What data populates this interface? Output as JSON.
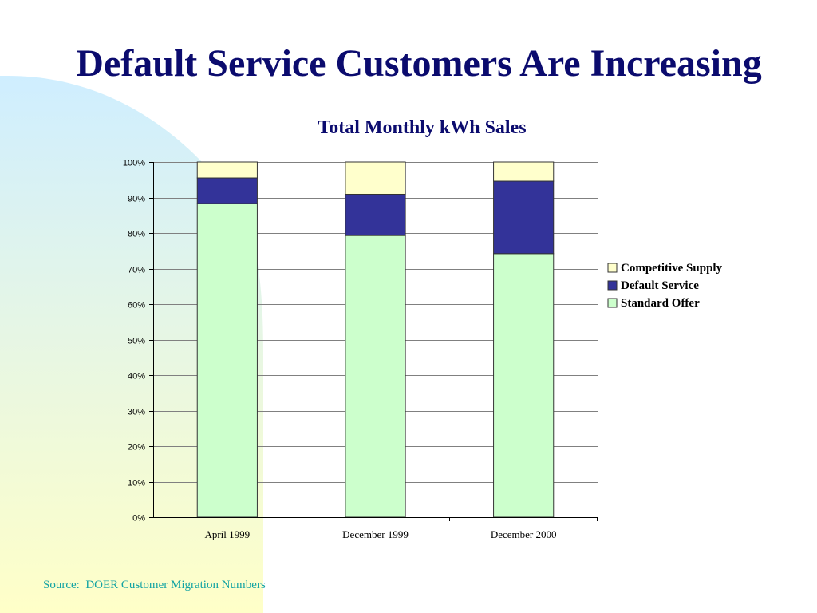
{
  "slide": {
    "title": "Default Service Customers Are Increasing",
    "source": "Source:  DOER Customer Migration Numbers"
  },
  "colors": {
    "title": "#0b0b6e",
    "source": "#12a3a3",
    "competitive_supply": "#ffffcc",
    "default_service": "#333399",
    "standard_offer": "#ccffcc",
    "gridline": "#808080",
    "bar_outline": "#333333",
    "background_gradient": [
      "#cfeeff",
      "#ffffc8"
    ]
  },
  "chart_data": {
    "type": "bar",
    "stacked": true,
    "percent_stacked": true,
    "title": "Total Monthly kWh Sales",
    "xlabel": "",
    "ylabel": "",
    "categories": [
      "April 1999",
      "December 1999",
      "December 2000"
    ],
    "series": [
      {
        "name": "Standard Offer",
        "values": [
          88.3,
          79.3,
          74.2
        ],
        "color": "#ccffcc"
      },
      {
        "name": "Default Service",
        "values": [
          7.2,
          11.6,
          20.4
        ],
        "color": "#333399"
      },
      {
        "name": "Competitive Supply",
        "values": [
          4.5,
          9.1,
          5.4
        ],
        "color": "#ffffcc"
      }
    ],
    "legend_order": [
      "Competitive Supply",
      "Default Service",
      "Standard Offer"
    ],
    "ylim": [
      0,
      100
    ],
    "yticks": [
      "0%",
      "10%",
      "20%",
      "30%",
      "40%",
      "50%",
      "60%",
      "70%",
      "80%",
      "90%",
      "100%"
    ],
    "grid": true,
    "legend_position": "right"
  }
}
